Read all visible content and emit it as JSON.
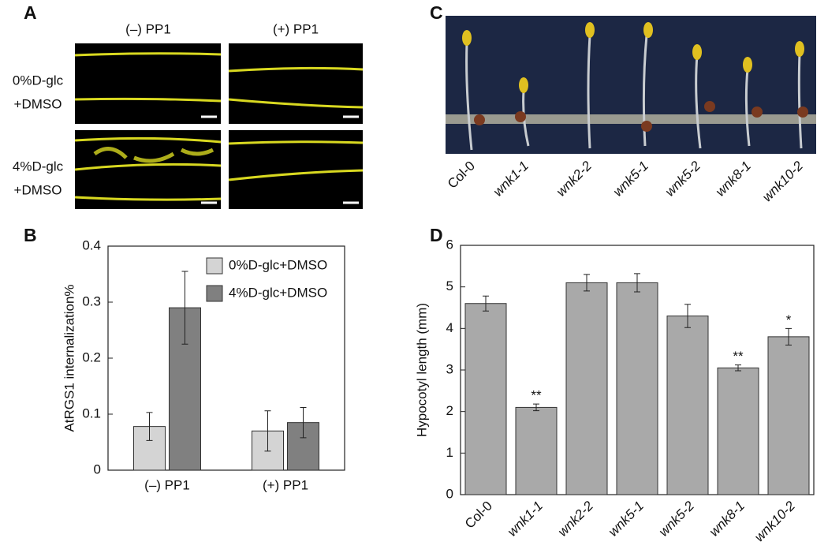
{
  "panel_labels": [
    "A",
    "B",
    "C",
    "D"
  ],
  "panel_a": {
    "columns": [
      "(–) PP1",
      "(+) PP1"
    ],
    "rows": [
      [
        "0%D-glc",
        "+DMSO"
      ],
      [
        "4%D-glc",
        "+DMSO"
      ]
    ]
  },
  "panel_c": {
    "labels": [
      "Col-0",
      "wnk1-1",
      "wnk2-2",
      "wnk5-1",
      "wnk5-2",
      "wnk8-1",
      "wnk10-2"
    ]
  },
  "chart_data": [
    {
      "type": "bar",
      "ylabel": "AtRGS1 internalization%",
      "categories": [
        "(–) PP1",
        "(+) PP1"
      ],
      "series": [
        {
          "name": "0%D-glc+DMSO",
          "color": "#d4d4d4",
          "values": [
            0.078,
            0.07
          ],
          "errors": [
            0.025,
            0.036
          ]
        },
        {
          "name": "4%D-glc+DMSO",
          "color": "#808080",
          "values": [
            0.29,
            0.085
          ],
          "errors": [
            0.065,
            0.027
          ]
        }
      ],
      "ylim": [
        0,
        0.4
      ],
      "yticks": [
        0,
        0.1,
        0.2,
        0.3,
        0.4
      ],
      "legend": "upper right"
    },
    {
      "type": "bar",
      "ylabel": "Hypocotyl length (mm)",
      "categories": [
        "Col-0",
        "wnk1-1",
        "wnk2-2",
        "wnk5-1",
        "wnk5-2",
        "wnk8-1",
        "wnk10-2"
      ],
      "values": [
        4.6,
        2.1,
        5.1,
        5.1,
        4.3,
        3.05,
        3.8
      ],
      "errors": [
        0.18,
        0.08,
        0.2,
        0.22,
        0.28,
        0.07,
        0.2
      ],
      "annotations": [
        null,
        "**",
        null,
        null,
        null,
        "**",
        "*"
      ],
      "color": "#a9a9a9",
      "ylim": [
        0,
        6
      ],
      "yticks": [
        0,
        1,
        2,
        3,
        4,
        5,
        6
      ]
    }
  ]
}
